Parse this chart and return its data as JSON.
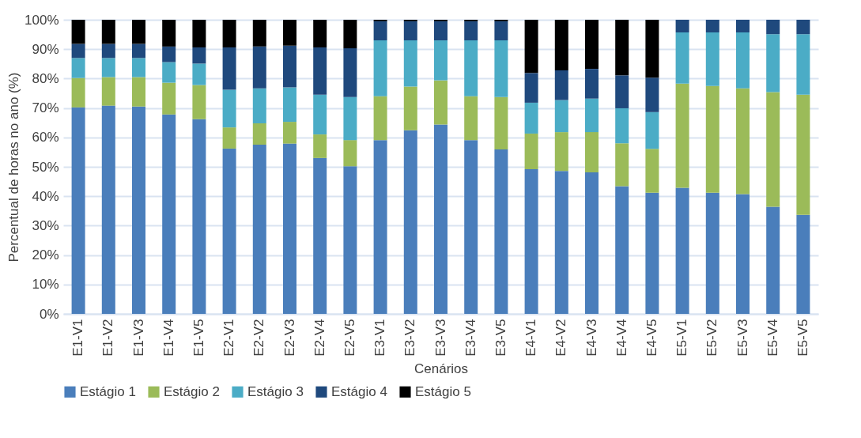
{
  "chart_data": {
    "type": "bar",
    "stacked": true,
    "xlabel": "Cenários",
    "ylabel": "Percentual de horas no ano (%)",
    "categories": [
      "E1-V1",
      "E1-V2",
      "E1-V3",
      "E1-V4",
      "E1-V5",
      "E2-V1",
      "E2-V2",
      "E2-V3",
      "E2-V4",
      "E2-V5",
      "E3-V1",
      "E3-V2",
      "E3-V3",
      "E3-V4",
      "E3-V5",
      "E4-V1",
      "E4-V2",
      "E4-V3",
      "E4-V4",
      "E4-V5",
      "E5-V1",
      "E5-V2",
      "E5-V3",
      "E5-V4",
      "E5-V5"
    ],
    "series": [
      {
        "name": "Estágio 1",
        "color": "#4a7ebb",
        "values": [
          70.2,
          70.8,
          70.5,
          67.8,
          66.2,
          56.2,
          57.5,
          57.9,
          53.0,
          50.2,
          59.1,
          62.4,
          64.4,
          59.1,
          55.9,
          49.2,
          48.6,
          48.1,
          43.4,
          41.2,
          42.9,
          41.2,
          40.7,
          36.4,
          33.7
        ]
      },
      {
        "name": "Estágio 2",
        "color": "#9bbb59",
        "values": [
          10.0,
          9.7,
          10.0,
          10.8,
          11.6,
          7.2,
          7.3,
          7.4,
          8.0,
          8.9,
          14.9,
          14.9,
          15.0,
          14.9,
          17.8,
          12.1,
          13.2,
          13.7,
          14.6,
          14.9,
          35.4,
          36.3,
          36.0,
          39.0,
          40.8
        ]
      },
      {
        "name": "Estágio 3",
        "color": "#4bacc6",
        "values": [
          6.8,
          6.5,
          6.5,
          7.0,
          7.3,
          12.8,
          11.9,
          11.7,
          13.5,
          14.6,
          19.0,
          15.7,
          13.6,
          19.0,
          19.3,
          10.5,
          10.9,
          11.4,
          11.9,
          12.5,
          17.4,
          18.2,
          19.0,
          19.7,
          20.6
        ]
      },
      {
        "name": "Estágio 4",
        "color": "#1f497d",
        "values": [
          4.8,
          4.8,
          4.8,
          5.3,
          5.5,
          14.4,
          14.2,
          14.2,
          16.1,
          16.6,
          6.5,
          6.5,
          6.5,
          6.5,
          6.5,
          10.1,
          10.1,
          10.1,
          11.2,
          11.7,
          4.3,
          4.3,
          4.3,
          4.9,
          4.9
        ]
      },
      {
        "name": "Estágio 5",
        "color": "#000000",
        "values": [
          8.2,
          8.2,
          8.2,
          9.1,
          9.4,
          9.4,
          9.1,
          8.8,
          9.4,
          9.7,
          0.5,
          0.5,
          0.5,
          0.5,
          0.5,
          18.1,
          17.2,
          16.7,
          18.9,
          19.7,
          0,
          0,
          0,
          0,
          0
        ]
      }
    ],
    "ylim": [
      0,
      100
    ],
    "yticks": [
      {
        "value": 0,
        "label": "0%"
      },
      {
        "value": 10,
        "label": "10%"
      },
      {
        "value": 20,
        "label": "20%"
      },
      {
        "value": 30,
        "label": "30%"
      },
      {
        "value": 40,
        "label": "40%"
      },
      {
        "value": 50,
        "label": "50%"
      },
      {
        "value": 60,
        "label": "60%"
      },
      {
        "value": 70,
        "label": "70%"
      },
      {
        "value": 80,
        "label": "80%"
      },
      {
        "value": 90,
        "label": "90%"
      },
      {
        "value": 100,
        "label": "100%"
      }
    ],
    "grid": "y",
    "legend": "bottom"
  }
}
